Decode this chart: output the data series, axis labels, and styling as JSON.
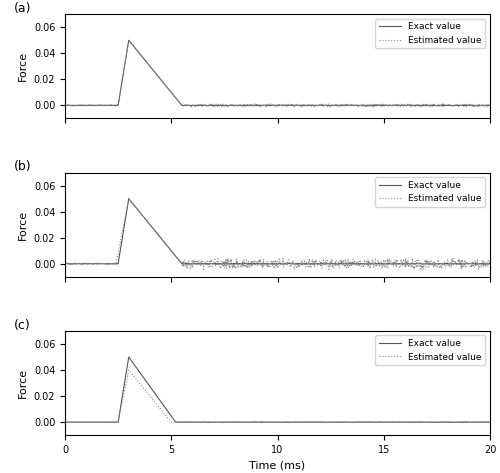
{
  "xlim": [
    0,
    20
  ],
  "ylim_a": [
    -0.01,
    0.07
  ],
  "ylim_b": [
    -0.01,
    0.07
  ],
  "ylim_c": [
    -0.01,
    0.07
  ],
  "yticks": [
    0.0,
    0.02,
    0.04,
    0.06
  ],
  "xticks": [
    0,
    5,
    10,
    15,
    20
  ],
  "xlabel": "Time (ms)",
  "ylabel": "Force",
  "legend_labels": [
    "Exact value",
    "Estimated value"
  ],
  "panel_labels": [
    "(a)",
    "(b)",
    "(c)"
  ],
  "exact_color": "#555555",
  "estimated_color": "#888888",
  "background": "#ffffff"
}
